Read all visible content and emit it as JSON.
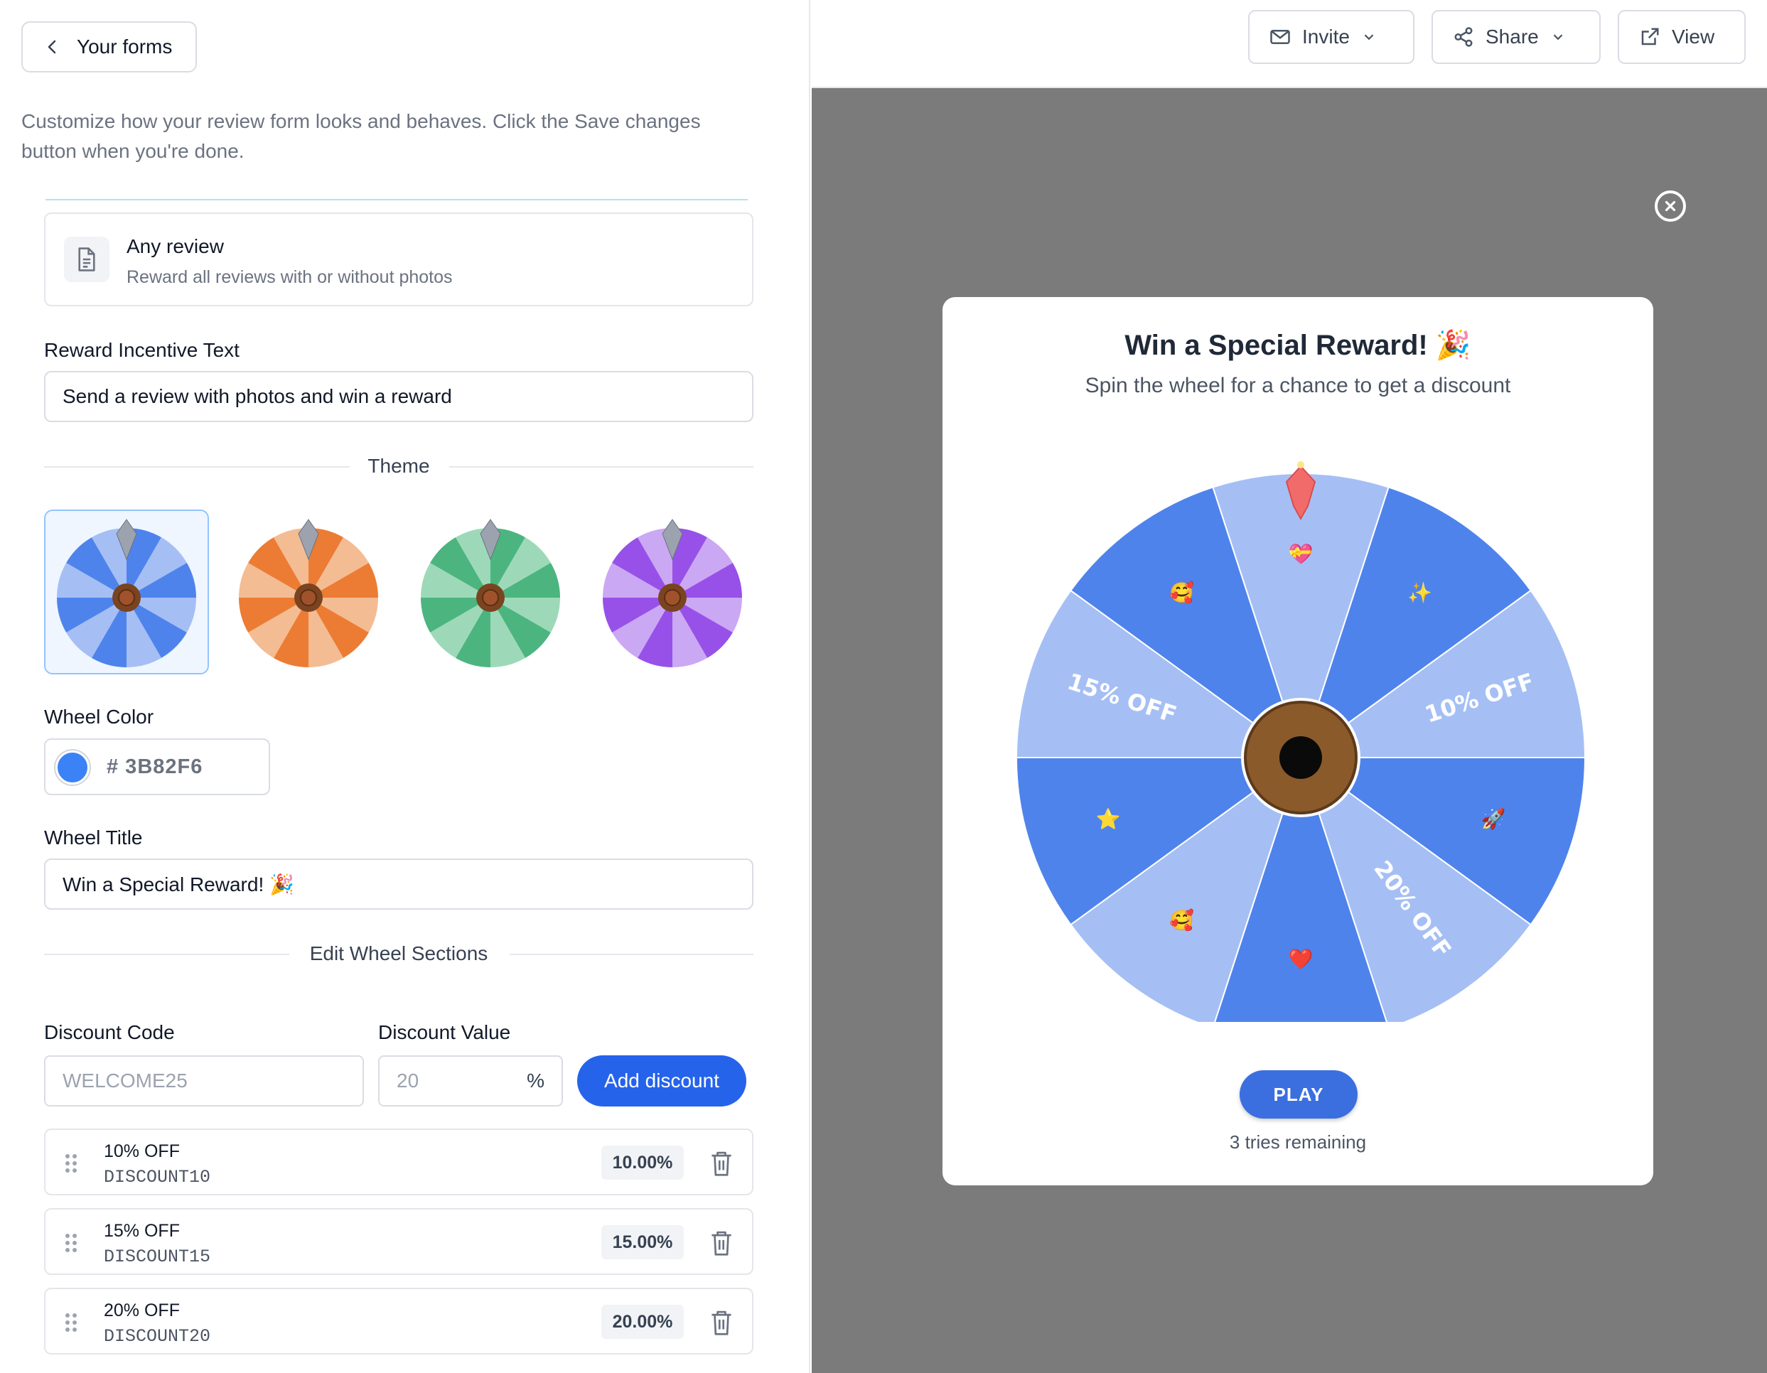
{
  "editor": {
    "back_label": "Your forms",
    "intro": "Customize how your review form looks and behaves. Click the Save changes button when you're done.",
    "review_option": {
      "title": "Any review",
      "subtitle": "Reward all reviews with or without photos"
    },
    "incentive": {
      "label": "Reward Incentive Text",
      "value": "Send a review with photos and win a reward"
    },
    "theme": {
      "label": "Theme",
      "options": [
        {
          "name": "blue",
          "dark": "#4f83ec",
          "light": "#a5bff5",
          "selected": true
        },
        {
          "name": "orange",
          "dark": "#ec7c33",
          "light": "#f3bc93",
          "selected": false
        },
        {
          "name": "green",
          "dark": "#4cb57f",
          "light": "#9dd9b9",
          "selected": false
        },
        {
          "name": "purple",
          "dark": "#9751e8",
          "light": "#cba8f3",
          "selected": false
        }
      ]
    },
    "wheel_color": {
      "label": "Wheel Color",
      "hex": "# 3B82F6"
    },
    "wheel_title": {
      "label": "Wheel Title",
      "value": "Win a Special Reward! 🎉"
    },
    "sections_divider": "Edit Wheel Sections",
    "discount_form": {
      "code_label": "Discount Code",
      "code_placeholder": "WELCOME25",
      "value_label": "Discount Value",
      "value_placeholder": "20",
      "value_suffix": "%",
      "add_label": "Add discount"
    },
    "discounts": [
      {
        "name": "10% OFF",
        "code": "DISCOUNT10",
        "pct": "10.00%"
      },
      {
        "name": "15% OFF",
        "code": "DISCOUNT15",
        "pct": "15.00%"
      },
      {
        "name": "20% OFF",
        "code": "DISCOUNT20",
        "pct": "20.00%"
      }
    ]
  },
  "toolbar": {
    "invite": "Invite",
    "share": "Share",
    "view": "View"
  },
  "preview": {
    "title": "Win a Special Reward! 🎉",
    "subtitle": "Spin the wheel for a chance to get a discount",
    "play": "PLAY",
    "tries": "3 tries remaining",
    "wheel": {
      "dark": "#4f83ec",
      "light": "#a5bff5",
      "segments": [
        {
          "label": "💝",
          "kind": "emoji"
        },
        {
          "label": "✨",
          "kind": "emoji"
        },
        {
          "label": "10% OFF",
          "kind": "text"
        },
        {
          "label": "🚀",
          "kind": "emoji"
        },
        {
          "label": "20% OFF",
          "kind": "text"
        },
        {
          "label": "❤️",
          "kind": "emoji"
        },
        {
          "label": "🥰",
          "kind": "emoji"
        },
        {
          "label": "⭐",
          "kind": "emoji"
        },
        {
          "label": "15% OFF",
          "kind": "text"
        },
        {
          "label": "🥰",
          "kind": "emoji"
        }
      ]
    }
  }
}
